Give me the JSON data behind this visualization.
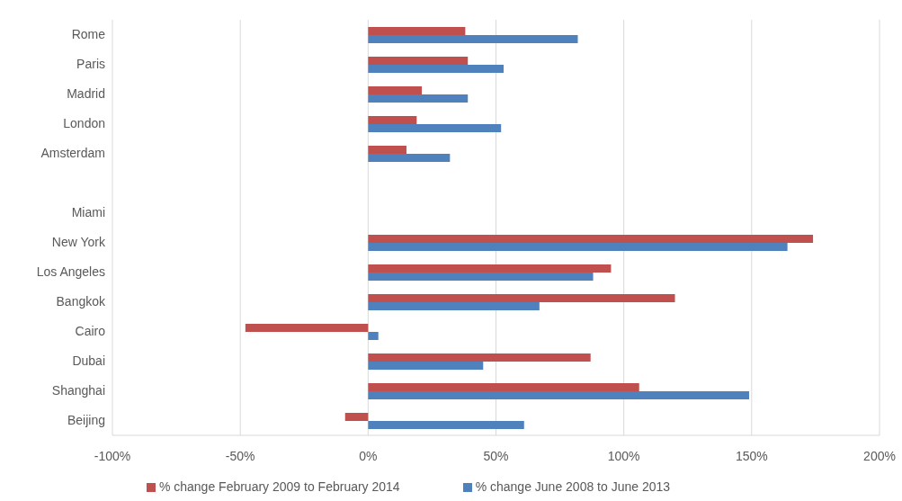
{
  "chart_data": {
    "type": "bar",
    "orientation": "horizontal",
    "categories": [
      "Rome",
      "Paris",
      "Madrid",
      "London",
      "Amsterdam",
      null,
      "Miami",
      "New York",
      "Los Angeles",
      "Bangkok",
      "Cairo",
      "Dubai",
      "Shanghai",
      "Beijing"
    ],
    "series": [
      {
        "name": "% change February 2009 to February 2014",
        "color": "#c0504d",
        "values": [
          38,
          39,
          21,
          19,
          15,
          null,
          null,
          174,
          95,
          120,
          -48,
          87,
          106,
          -9
        ]
      },
      {
        "name": "% change June 2008 to June 2013",
        "color": "#4f81bd",
        "values": [
          82,
          53,
          39,
          52,
          32,
          null,
          null,
          164,
          88,
          67,
          4,
          45,
          149,
          61
        ]
      }
    ],
    "xlim": [
      -100,
      200
    ],
    "xticks": [
      {
        "value": -100,
        "label": "-100%"
      },
      {
        "value": -50,
        "label": "-50%"
      },
      {
        "value": 0,
        "label": "0%"
      },
      {
        "value": 50,
        "label": "50%"
      },
      {
        "value": 100,
        "label": "100%"
      },
      {
        "value": 150,
        "label": "150%"
      },
      {
        "value": 200,
        "label": "200%"
      }
    ],
    "grid": "x",
    "legend": "bottom"
  }
}
